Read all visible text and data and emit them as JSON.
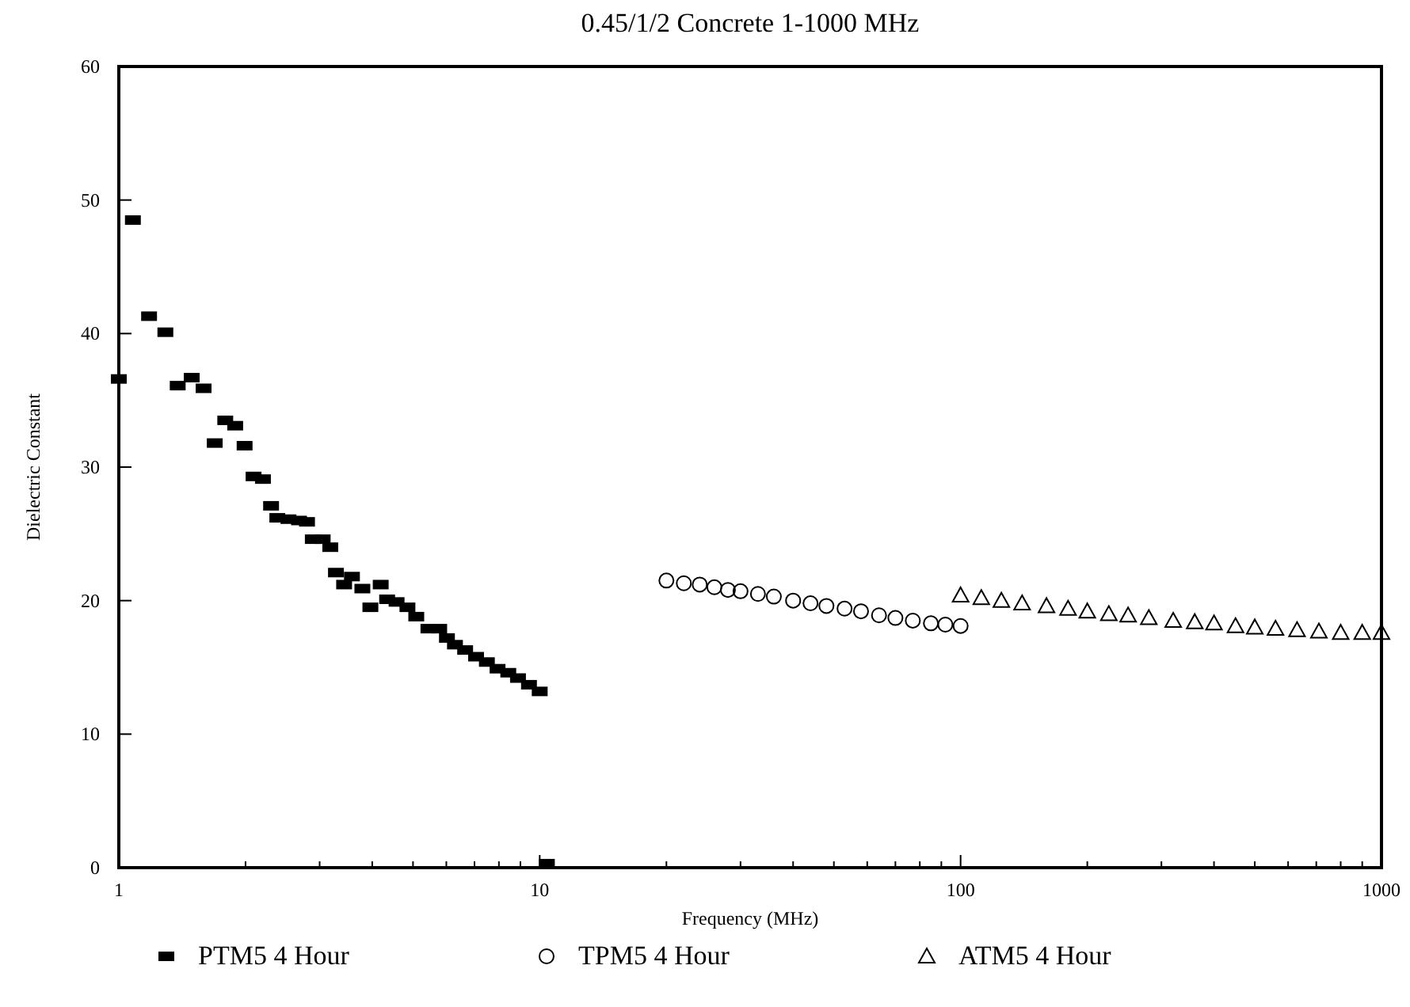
{
  "chart_data": {
    "type": "scatter",
    "title": "0.45/1/2 Concrete 1-1000 MHz",
    "xlabel": "Frequency (MHz)",
    "ylabel": "Dielectric Constant",
    "log": "x",
    "xlim": [
      1,
      1000
    ],
    "ylim": [
      0,
      60
    ],
    "xticks": [
      1,
      {
        "value": 2,
        "label": null
      },
      {
        "value": 3,
        "label": null
      },
      {
        "value": 4,
        "label": null
      },
      {
        "value": 5,
        "label": null
      },
      {
        "value": 6,
        "label": null
      },
      {
        "value": 7,
        "label": null
      },
      {
        "value": 8,
        "label": null
      },
      {
        "value": 9,
        "label": null
      },
      10,
      {
        "value": 20,
        "label": null
      },
      {
        "value": 30,
        "label": null
      },
      {
        "value": 40,
        "label": null
      },
      {
        "value": 50,
        "label": null
      },
      {
        "value": 60,
        "label": null
      },
      {
        "value": 70,
        "label": null
      },
      {
        "value": 80,
        "label": null
      },
      {
        "value": 90,
        "label": null
      },
      100,
      {
        "value": 200,
        "label": null
      },
      {
        "value": 300,
        "label": null
      },
      {
        "value": 400,
        "label": null
      },
      {
        "value": 500,
        "label": null
      },
      {
        "value": 600,
        "label": null
      },
      {
        "value": 700,
        "label": null
      },
      {
        "value": 800,
        "label": null
      },
      {
        "value": 900,
        "label": null
      },
      1000
    ],
    "yticks": [
      0,
      10,
      20,
      30,
      40,
      50,
      60
    ],
    "grid": false,
    "legend": "bottom",
    "series": [
      {
        "name": "PTM5 4 Hour",
        "color": "#000000",
        "marker": "square",
        "x": [
          1.0,
          1.08,
          1.18,
          1.29,
          1.38,
          1.49,
          1.59,
          1.69,
          1.79,
          1.89,
          1.99,
          2.09,
          2.2,
          2.3,
          2.38,
          2.53,
          2.68,
          2.8,
          2.89,
          3.05,
          3.18,
          3.28,
          3.43,
          3.58,
          3.79,
          3.96,
          4.19,
          4.34,
          4.57,
          4.85,
          5.09,
          5.44,
          5.77,
          6.02,
          6.29,
          6.65,
          7.06,
          7.49,
          7.94,
          8.42,
          8.88,
          9.43,
          10.0,
          10.4
        ],
        "values": [
          36.6,
          48.5,
          41.3,
          40.1,
          36.1,
          36.7,
          35.9,
          31.8,
          33.5,
          33.1,
          31.6,
          29.3,
          29.1,
          27.1,
          26.2,
          26.1,
          26.0,
          25.9,
          24.6,
          24.6,
          24.0,
          22.1,
          21.2,
          21.8,
          20.9,
          19.5,
          21.2,
          20.1,
          19.9,
          19.5,
          18.8,
          17.9,
          17.9,
          17.2,
          16.7,
          16.3,
          15.8,
          15.4,
          14.9,
          14.6,
          14.2,
          13.7,
          13.2,
          0.3
        ]
      },
      {
        "name": "TPM5 4 Hour",
        "color": "#000000",
        "marker": "circle",
        "x": [
          20,
          22,
          24,
          26,
          28,
          30,
          33,
          36,
          40,
          44,
          48,
          53,
          58,
          64,
          70,
          77,
          85,
          92,
          100
        ],
        "values": [
          21.5,
          21.3,
          21.2,
          21.0,
          20.8,
          20.7,
          20.5,
          20.3,
          20.0,
          19.8,
          19.6,
          19.4,
          19.2,
          18.9,
          18.7,
          18.5,
          18.3,
          18.2,
          18.1
        ]
      },
      {
        "name": "ATM5 4 Hour",
        "color": "#000000",
        "marker": "triangle",
        "x": [
          100,
          112,
          125,
          140,
          160,
          180,
          200,
          225,
          250,
          280,
          320,
          360,
          400,
          450,
          500,
          560,
          630,
          710,
          800,
          900,
          1000
        ],
        "values": [
          20.4,
          20.2,
          20.0,
          19.8,
          19.6,
          19.4,
          19.2,
          19.0,
          18.9,
          18.7,
          18.5,
          18.4,
          18.3,
          18.1,
          18.0,
          17.9,
          17.8,
          17.7,
          17.6,
          17.6,
          17.6
        ]
      }
    ]
  }
}
